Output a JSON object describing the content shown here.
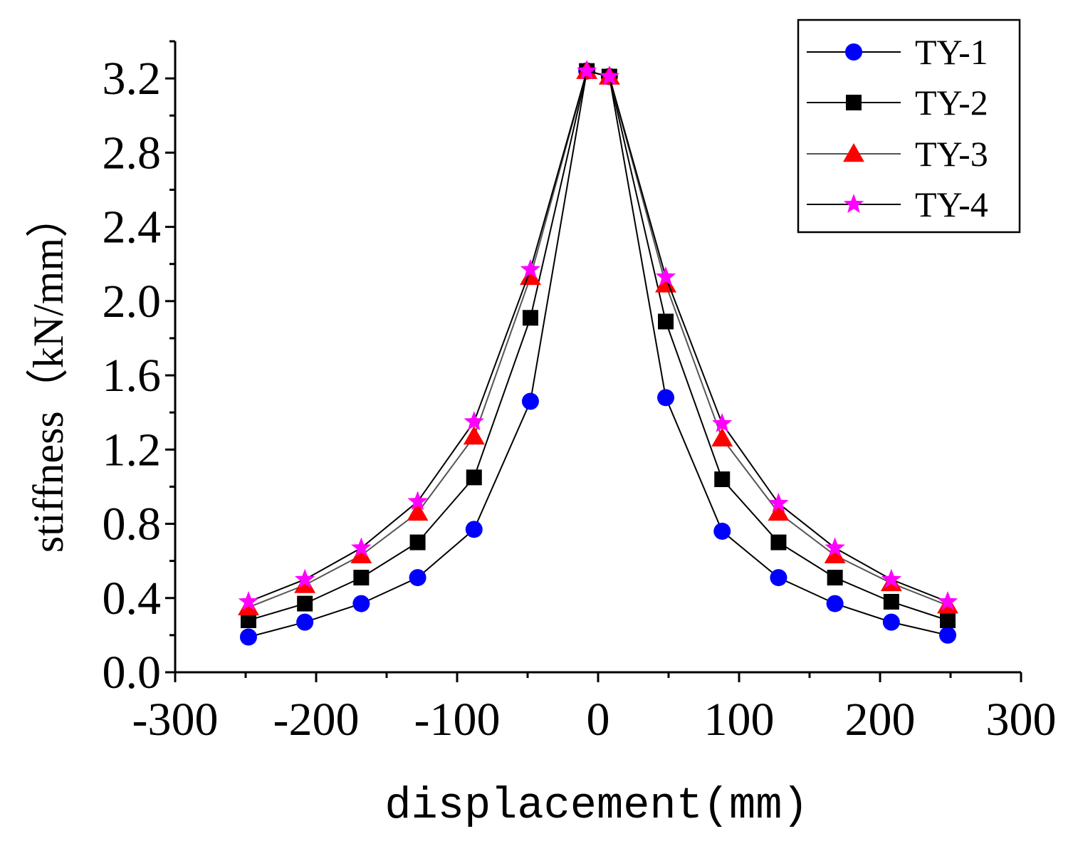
{
  "chart_data": {
    "type": "line",
    "title": "",
    "xlabel": "displacement(mm)",
    "ylabel": "stiffness（kN/mm）",
    "xlim": [
      -300,
      300
    ],
    "ylim": [
      0.0,
      3.4
    ],
    "xticks": [
      -300,
      -200,
      -100,
      0,
      100,
      200,
      300
    ],
    "xtick_labels": [
      "-300",
      "-200",
      "-100",
      "0",
      "100",
      "200",
      "300"
    ],
    "yticks": [
      0.0,
      0.4,
      0.8,
      1.2,
      1.6,
      2.0,
      2.4,
      2.8,
      3.2
    ],
    "ytick_labels": [
      "0.0",
      "0.4",
      "0.8",
      "1.2",
      "1.6",
      "2.0",
      "2.4",
      "2.8",
      "3.2"
    ],
    "grid": false,
    "legend_position": "top-right",
    "x": [
      -248,
      -208,
      -168,
      -128,
      -88,
      -48,
      -8,
      8,
      48,
      88,
      128,
      168,
      208,
      248
    ],
    "series": [
      {
        "name": "TY-1",
        "marker": "circle",
        "marker_color": "#0000ff",
        "line_color": "#000000",
        "values": [
          0.19,
          0.27,
          0.37,
          0.51,
          0.77,
          1.46,
          3.24,
          3.21,
          1.48,
          0.76,
          0.51,
          0.37,
          0.27,
          0.2
        ]
      },
      {
        "name": "TY-2",
        "marker": "square",
        "marker_color": "#000000",
        "line_color": "#000000",
        "values": [
          0.28,
          0.37,
          0.51,
          0.7,
          1.05,
          1.91,
          3.24,
          3.21,
          1.89,
          1.04,
          0.7,
          0.51,
          0.38,
          0.28
        ]
      },
      {
        "name": "TY-3",
        "marker": "triangle",
        "marker_color": "#ff0000",
        "line_color": "#555555",
        "values": [
          0.35,
          0.47,
          0.63,
          0.86,
          1.27,
          2.13,
          3.24,
          3.21,
          2.09,
          1.26,
          0.86,
          0.63,
          0.48,
          0.36
        ]
      },
      {
        "name": "TY-4",
        "marker": "star",
        "marker_color": "#ff00ff",
        "line_color": "#000000",
        "values": [
          0.38,
          0.5,
          0.67,
          0.92,
          1.35,
          2.17,
          3.24,
          3.21,
          2.13,
          1.34,
          0.91,
          0.67,
          0.5,
          0.38
        ]
      }
    ]
  }
}
